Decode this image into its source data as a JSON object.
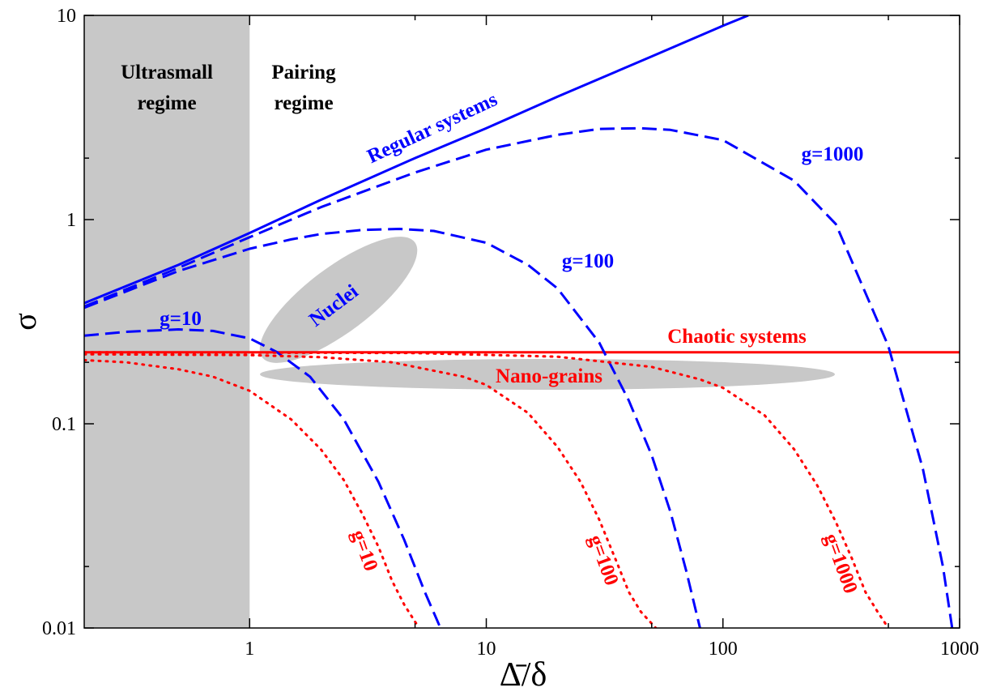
{
  "chart_data": {
    "type": "line",
    "xlabel": "Δ̄/δ",
    "ylabel": "σ",
    "x_scale": "log",
    "y_scale": "log",
    "xlim": [
      0.2,
      1000
    ],
    "ylim": [
      0.01,
      10
    ],
    "x_tick_labels": [
      "1",
      "10",
      "100",
      "1000"
    ],
    "y_tick_labels": [
      "0.01",
      "0.1",
      "1",
      "10"
    ],
    "regions": [
      {
        "name": "Ultrasmall regime",
        "x_range": [
          0.2,
          1
        ],
        "color": "#c8c8c8"
      }
    ],
    "regime_labels": [
      {
        "line1": "Ultrasmall",
        "line2": "regime"
      },
      {
        "line1": "Pairing",
        "line2": "regime"
      }
    ],
    "ellipse_labels": [
      "Nuclei",
      "Nano-grains"
    ],
    "series": [
      {
        "name": "Regular systems",
        "style": "solid",
        "color": "#0000ff",
        "x": [
          0.2,
          0.5,
          1,
          2,
          5,
          10,
          20,
          50,
          100,
          128
        ],
        "y": [
          0.39,
          0.6,
          0.86,
          1.25,
          2.0,
          2.8,
          4.0,
          6.3,
          8.9,
          10
        ]
      },
      {
        "name": "Chaotic systems",
        "style": "solid",
        "color": "#ff0000",
        "x": [
          0.2,
          1000
        ],
        "y": [
          0.224,
          0.224
        ]
      },
      {
        "name": "g=10",
        "style": "dashed",
        "color": "#0000ff",
        "x": [
          0.2,
          0.3,
          0.5,
          0.7,
          1.0,
          1.3,
          1.8,
          2.5,
          3.5,
          4.5,
          5.5,
          6.4
        ],
        "y": [
          0.27,
          0.282,
          0.29,
          0.285,
          0.262,
          0.225,
          0.17,
          0.105,
          0.052,
          0.027,
          0.015,
          0.01
        ]
      },
      {
        "name": "g=100",
        "style": "dashed",
        "color": "#0000ff",
        "x": [
          0.2,
          0.5,
          1,
          1.5,
          2,
          3,
          4.3,
          6,
          10,
          15,
          20,
          30,
          40,
          50,
          60,
          70,
          80
        ],
        "y": [
          0.37,
          0.56,
          0.72,
          0.8,
          0.85,
          0.89,
          0.9,
          0.88,
          0.77,
          0.6,
          0.46,
          0.25,
          0.13,
          0.07,
          0.037,
          0.019,
          0.01
        ]
      },
      {
        "name": "g=1000",
        "style": "dashed",
        "color": "#0000ff",
        "x": [
          0.2,
          0.5,
          1,
          2,
          5,
          10,
          20,
          30,
          45,
          60,
          100,
          200,
          300,
          500,
          700,
          850,
          930
        ],
        "y": [
          0.375,
          0.58,
          0.82,
          1.15,
          1.7,
          2.2,
          2.6,
          2.78,
          2.8,
          2.75,
          2.45,
          1.55,
          0.95,
          0.24,
          0.06,
          0.02,
          0.01
        ]
      },
      {
        "name": "g=10",
        "style": "dotted",
        "color": "#ff0000",
        "x": [
          0.2,
          0.3,
          0.5,
          0.7,
          1.0,
          1.5,
          2.0,
          2.5,
          3.0,
          3.5,
          4.0,
          4.5,
          5.2
        ],
        "y": [
          0.205,
          0.2,
          0.185,
          0.17,
          0.145,
          0.105,
          0.075,
          0.053,
          0.036,
          0.025,
          0.017,
          0.013,
          0.01
        ]
      },
      {
        "name": "g=100",
        "style": "dotted",
        "color": "#ff0000",
        "x": [
          0.2,
          1,
          2,
          4,
          8,
          10,
          15,
          20,
          25,
          30,
          35,
          40,
          45,
          52
        ],
        "y": [
          0.219,
          0.217,
          0.212,
          0.2,
          0.17,
          0.155,
          0.113,
          0.077,
          0.052,
          0.034,
          0.022,
          0.015,
          0.012,
          0.01
        ]
      },
      {
        "name": "g=1000",
        "style": "dotted",
        "color": "#ff0000",
        "x": [
          0.2,
          5,
          20,
          50,
          80,
          100,
          150,
          200,
          250,
          300,
          350,
          400,
          450,
          500
        ],
        "y": [
          0.224,
          0.222,
          0.213,
          0.19,
          0.165,
          0.15,
          0.11,
          0.075,
          0.05,
          0.033,
          0.022,
          0.015,
          0.012,
          0.01
        ]
      }
    ]
  }
}
